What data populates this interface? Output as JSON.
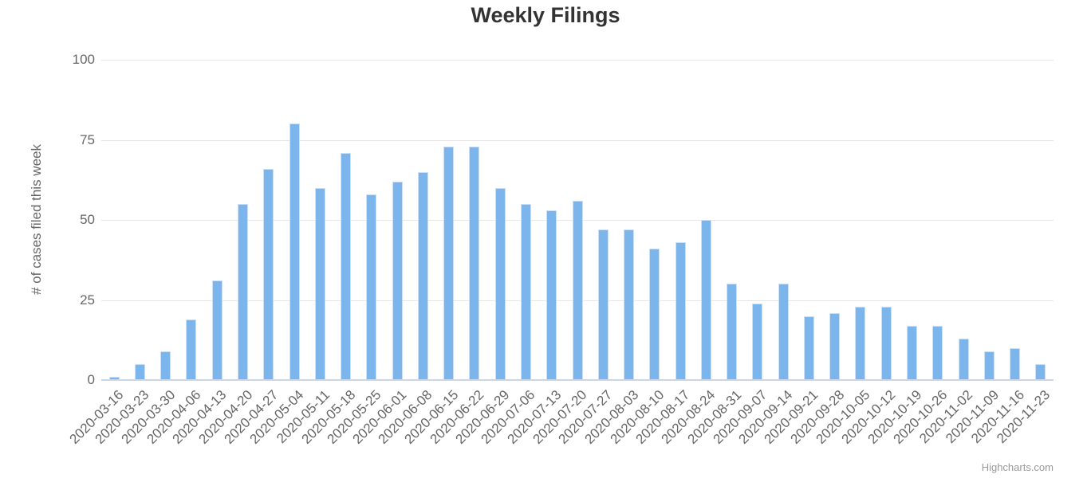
{
  "title": "Weekly Filings",
  "credits": "Highcharts.com",
  "colors": {
    "bar": "#7cb5ec",
    "gridline": "#e6e6e6",
    "axis_line": "#ccd6eb",
    "title_text": "#333333",
    "axis_text": "#666666",
    "credits_text": "#999999"
  },
  "chart_data": {
    "type": "bar",
    "title": "Weekly Filings",
    "xlabel": "",
    "ylabel": "# of cases filed this week",
    "ylim": [
      0,
      100
    ],
    "yticks": [
      0,
      25,
      50,
      75,
      100
    ],
    "grid": true,
    "legend": false,
    "categories": [
      "2020-03-16",
      "2020-03-23",
      "2020-03-30",
      "2020-04-06",
      "2020-04-13",
      "2020-04-20",
      "2020-04-27",
      "2020-05-04",
      "2020-05-11",
      "2020-05-18",
      "2020-05-25",
      "2020-06-01",
      "2020-06-08",
      "2020-06-15",
      "2020-06-22",
      "2020-06-29",
      "2020-07-06",
      "2020-07-13",
      "2020-07-20",
      "2020-07-27",
      "2020-08-03",
      "2020-08-10",
      "2020-08-17",
      "2020-08-24",
      "2020-08-31",
      "2020-09-07",
      "2020-09-14",
      "2020-09-21",
      "2020-09-28",
      "2020-10-05",
      "2020-10-12",
      "2020-10-19",
      "2020-10-26",
      "2020-11-02",
      "2020-11-09",
      "2020-11-16",
      "2020-11-23"
    ],
    "values": [
      1,
      5,
      9,
      19,
      31,
      55,
      66,
      80,
      60,
      71,
      58,
      62,
      65,
      73,
      73,
      60,
      55,
      53,
      56,
      47,
      47,
      41,
      43,
      50,
      30,
      24,
      30,
      20,
      21,
      23,
      23,
      17,
      17,
      13,
      9,
      10,
      5
    ]
  }
}
